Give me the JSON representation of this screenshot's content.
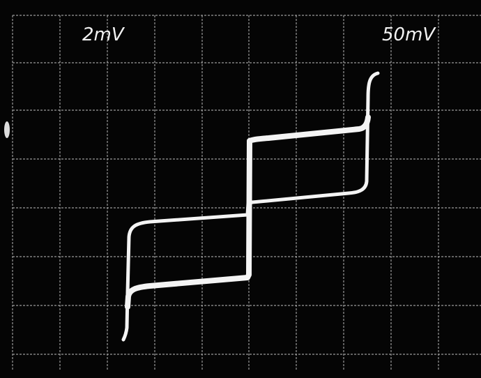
{
  "screen": {
    "left_label": "2mV",
    "right_label": "50mV"
  }
}
